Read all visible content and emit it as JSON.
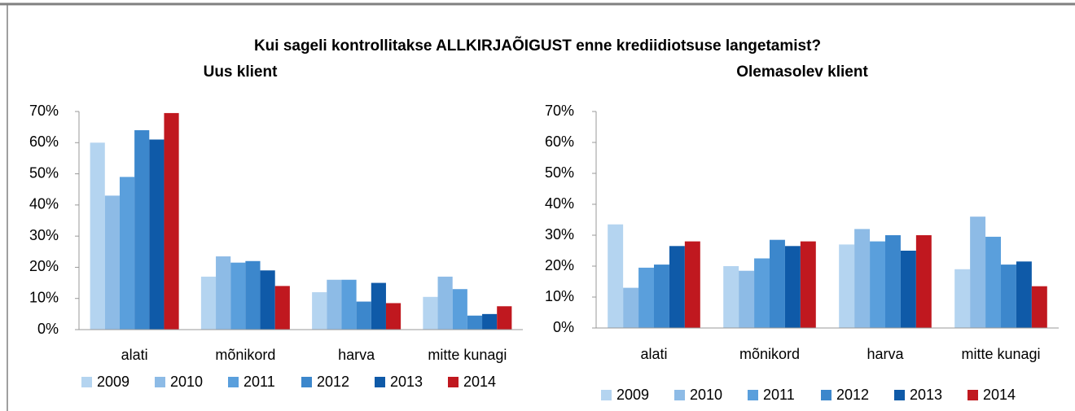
{
  "title": "Kui sageli kontrollitakse ALLKIRJAÕIGUST enne krediidiotsuse langetamist?",
  "chart_data": [
    {
      "type": "bar",
      "title": "Uus klient",
      "categories": [
        "alati",
        "mõnikord",
        "harva",
        "mitte kunagi"
      ],
      "series": [
        {
          "name": "2009",
          "color": "#b4d4f0",
          "values": [
            60,
            17,
            12,
            10.5
          ]
        },
        {
          "name": "2010",
          "color": "#8dbbe6",
          "values": [
            43,
            23.5,
            16,
            17
          ]
        },
        {
          "name": "2011",
          "color": "#5a9fdc",
          "values": [
            49,
            21.5,
            16,
            13
          ]
        },
        {
          "name": "2012",
          "color": "#3c87cc",
          "values": [
            64,
            22,
            9,
            4.5
          ]
        },
        {
          "name": "2013",
          "color": "#0f5aa8",
          "values": [
            61,
            19,
            15,
            5
          ]
        },
        {
          "name": "2014",
          "color": "#c0181f",
          "values": [
            69.5,
            14,
            8.5,
            7.5
          ]
        }
      ],
      "ylim": [
        0,
        70
      ],
      "yticks": [
        {
          "value": 0,
          "label": "0%"
        },
        {
          "value": 10,
          "label": "10%"
        },
        {
          "value": 20,
          "label": "20%"
        },
        {
          "value": 30,
          "label": "30%"
        },
        {
          "value": 40,
          "label": "40%"
        },
        {
          "value": 50,
          "label": "50%"
        },
        {
          "value": 60,
          "label": "60%"
        },
        {
          "value": 70,
          "label": "70%"
        }
      ],
      "grid": false,
      "legend": "bottom"
    },
    {
      "type": "bar",
      "title": "Olemasolev klient",
      "categories": [
        "alati",
        "mõnikord",
        "harva",
        "mitte kunagi"
      ],
      "series": [
        {
          "name": "2009",
          "color": "#b4d4f0",
          "values": [
            33.5,
            20,
            27,
            19
          ]
        },
        {
          "name": "2010",
          "color": "#8dbbe6",
          "values": [
            13,
            18.5,
            32,
            36
          ]
        },
        {
          "name": "2011",
          "color": "#5a9fdc",
          "values": [
            19.5,
            22.5,
            28,
            29.5
          ]
        },
        {
          "name": "2012",
          "color": "#3c87cc",
          "values": [
            20.5,
            28.5,
            30,
            20.5
          ]
        },
        {
          "name": "2013",
          "color": "#0f5aa8",
          "values": [
            26.5,
            26.5,
            25,
            21.5
          ]
        },
        {
          "name": "2014",
          "color": "#c0181f",
          "values": [
            28,
            28,
            30,
            13.5
          ]
        }
      ],
      "ylim": [
        0,
        70
      ],
      "yticks": [
        {
          "value": 0,
          "label": "0%"
        },
        {
          "value": 10,
          "label": "10%"
        },
        {
          "value": 20,
          "label": "20%"
        },
        {
          "value": 30,
          "label": "30%"
        },
        {
          "value": 40,
          "label": "40%"
        },
        {
          "value": 50,
          "label": "50%"
        },
        {
          "value": 60,
          "label": "60%"
        },
        {
          "value": 70,
          "label": "70%"
        }
      ],
      "grid": false,
      "legend": "bottom"
    }
  ]
}
